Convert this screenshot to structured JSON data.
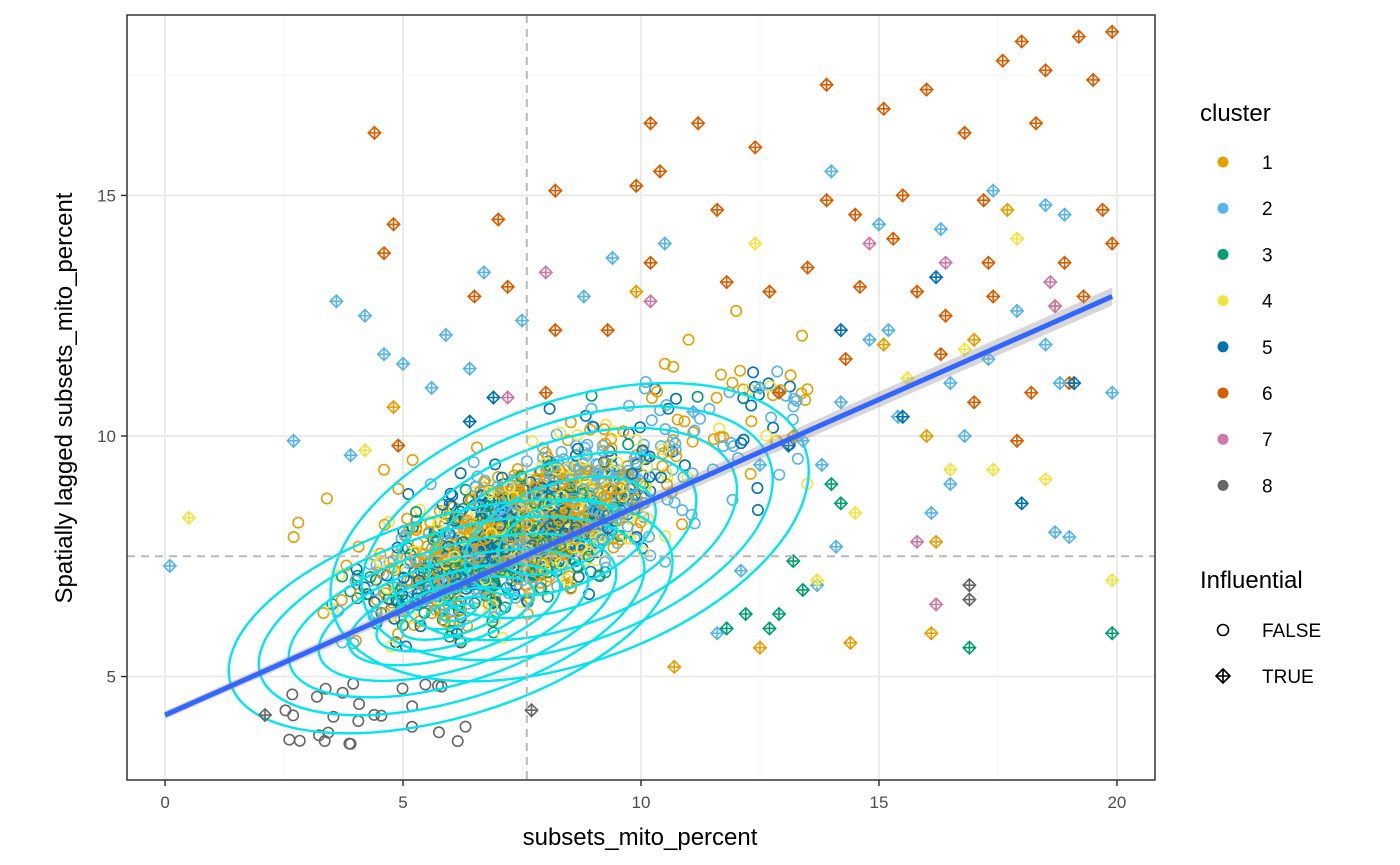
{
  "chart_data": {
    "type": "scatter",
    "xlabel": "subsets_mito_percent",
    "ylabel": "Spatially lagged subsets_mito_percent",
    "xlim": [
      -0.8,
      20.8
    ],
    "ylim": [
      2.85,
      18.75
    ],
    "x_ticks": [
      0,
      5,
      10,
      15,
      20
    ],
    "y_ticks": [
      5,
      10,
      15
    ],
    "grid": true,
    "reference_lines": {
      "x": 7.6,
      "y": 7.5
    },
    "regression_line": {
      "x": [
        0,
        19.9
      ],
      "y": [
        4.2,
        12.9
      ],
      "color": "#3366ff"
    },
    "legend_position": "right",
    "cluster_legend": {
      "title": "cluster",
      "items": [
        {
          "label": "1",
          "color": "#e69f00"
        },
        {
          "label": "2",
          "color": "#56b4e9"
        },
        {
          "label": "3",
          "color": "#009e73"
        },
        {
          "label": "4",
          "color": "#f0e442"
        },
        {
          "label": "5",
          "color": "#0072b2"
        },
        {
          "label": "6",
          "color": "#d55e00"
        },
        {
          "label": "7",
          "color": "#cc79a7"
        },
        {
          "label": "8",
          "color": "#666666"
        }
      ]
    },
    "influential_legend": {
      "title": "Influential",
      "items": [
        {
          "label": "FALSE",
          "shape": "circle"
        },
        {
          "label": "TRUE",
          "shape": "diamond-plus"
        }
      ]
    },
    "density_contour_color": "#00e5ee",
    "influential_points": [
      {
        "x": 4.4,
        "y": 16.3,
        "c": 6
      },
      {
        "x": 4.8,
        "y": 14.4,
        "c": 6
      },
      {
        "x": 4.6,
        "y": 13.8,
        "c": 6
      },
      {
        "x": 7.0,
        "y": 14.5,
        "c": 6
      },
      {
        "x": 10.2,
        "y": 16.5,
        "c": 6
      },
      {
        "x": 11.2,
        "y": 16.5,
        "c": 6
      },
      {
        "x": 8.2,
        "y": 15.1,
        "c": 6
      },
      {
        "x": 9.9,
        "y": 15.2,
        "c": 6
      },
      {
        "x": 10.4,
        "y": 15.5,
        "c": 6
      },
      {
        "x": 11.6,
        "y": 14.7,
        "c": 6
      },
      {
        "x": 12.4,
        "y": 16.0,
        "c": 6
      },
      {
        "x": 13.9,
        "y": 17.3,
        "c": 6
      },
      {
        "x": 13.9,
        "y": 14.9,
        "c": 6
      },
      {
        "x": 14.5,
        "y": 14.6,
        "c": 6
      },
      {
        "x": 15.1,
        "y": 16.8,
        "c": 6
      },
      {
        "x": 15.5,
        "y": 15.0,
        "c": 6
      },
      {
        "x": 16.0,
        "y": 17.2,
        "c": 6
      },
      {
        "x": 16.8,
        "y": 16.3,
        "c": 6
      },
      {
        "x": 17.2,
        "y": 14.9,
        "c": 6
      },
      {
        "x": 17.6,
        "y": 17.8,
        "c": 6
      },
      {
        "x": 18.0,
        "y": 18.2,
        "c": 6
      },
      {
        "x": 18.5,
        "y": 17.6,
        "c": 6
      },
      {
        "x": 19.2,
        "y": 18.3,
        "c": 6
      },
      {
        "x": 19.9,
        "y": 18.4,
        "c": 6
      },
      {
        "x": 19.5,
        "y": 17.4,
        "c": 6
      },
      {
        "x": 18.3,
        "y": 16.5,
        "c": 6
      },
      {
        "x": 19.7,
        "y": 14.7,
        "c": 6
      },
      {
        "x": 19.9,
        "y": 14.0,
        "c": 6
      },
      {
        "x": 18.9,
        "y": 13.6,
        "c": 6
      },
      {
        "x": 17.4,
        "y": 12.9,
        "c": 6
      },
      {
        "x": 16.4,
        "y": 12.5,
        "c": 6
      },
      {
        "x": 15.3,
        "y": 14.1,
        "c": 6
      },
      {
        "x": 14.6,
        "y": 13.1,
        "c": 6
      },
      {
        "x": 13.5,
        "y": 13.5,
        "c": 6
      },
      {
        "x": 12.7,
        "y": 13.0,
        "c": 6
      },
      {
        "x": 11.8,
        "y": 13.2,
        "c": 6
      },
      {
        "x": 10.2,
        "y": 13.6,
        "c": 6
      },
      {
        "x": 9.3,
        "y": 12.2,
        "c": 6
      },
      {
        "x": 8.2,
        "y": 12.2,
        "c": 6
      },
      {
        "x": 7.2,
        "y": 13.1,
        "c": 6
      },
      {
        "x": 6.5,
        "y": 12.9,
        "c": 6
      },
      {
        "x": 4.9,
        "y": 9.8,
        "c": 6
      },
      {
        "x": 8.0,
        "y": 10.9,
        "c": 6
      },
      {
        "x": 12.9,
        "y": 10.9,
        "c": 6
      },
      {
        "x": 14.3,
        "y": 11.6,
        "c": 6
      },
      {
        "x": 16.3,
        "y": 11.7,
        "c": 6
      },
      {
        "x": 17.0,
        "y": 10.7,
        "c": 6
      },
      {
        "x": 18.2,
        "y": 10.9,
        "c": 6
      },
      {
        "x": 17.9,
        "y": 9.9,
        "c": 6
      },
      {
        "x": 19.0,
        "y": 11.1,
        "c": 6
      },
      {
        "x": 18.7,
        "y": 12.7,
        "c": 6
      },
      {
        "x": 17.3,
        "y": 13.6,
        "c": 6
      },
      {
        "x": 19.3,
        "y": 12.9,
        "c": 6
      },
      {
        "x": 15.8,
        "y": 13.0,
        "c": 6
      },
      {
        "x": 14.0,
        "y": 15.5,
        "c": 2
      },
      {
        "x": 17.4,
        "y": 15.1,
        "c": 2
      },
      {
        "x": 18.5,
        "y": 14.8,
        "c": 2
      },
      {
        "x": 18.9,
        "y": 14.6,
        "c": 2
      },
      {
        "x": 15.0,
        "y": 14.4,
        "c": 2
      },
      {
        "x": 16.3,
        "y": 14.3,
        "c": 2
      },
      {
        "x": 3.6,
        "y": 12.8,
        "c": 2
      },
      {
        "x": 4.2,
        "y": 12.5,
        "c": 2
      },
      {
        "x": 6.7,
        "y": 13.4,
        "c": 2
      },
      {
        "x": 5.9,
        "y": 12.1,
        "c": 2
      },
      {
        "x": 6.4,
        "y": 11.4,
        "c": 2
      },
      {
        "x": 4.6,
        "y": 11.7,
        "c": 2
      },
      {
        "x": 5.0,
        "y": 11.5,
        "c": 2
      },
      {
        "x": 5.6,
        "y": 11.0,
        "c": 2
      },
      {
        "x": 7.5,
        "y": 12.4,
        "c": 2
      },
      {
        "x": 8.8,
        "y": 12.9,
        "c": 2
      },
      {
        "x": 9.4,
        "y": 13.7,
        "c": 2
      },
      {
        "x": 10.5,
        "y": 14.0,
        "c": 2
      },
      {
        "x": 2.7,
        "y": 9.9,
        "c": 2
      },
      {
        "x": 0.1,
        "y": 7.3,
        "c": 2
      },
      {
        "x": 3.9,
        "y": 9.6,
        "c": 2
      },
      {
        "x": 14.8,
        "y": 12.0,
        "c": 2
      },
      {
        "x": 15.2,
        "y": 12.2,
        "c": 2
      },
      {
        "x": 16.5,
        "y": 11.1,
        "c": 2
      },
      {
        "x": 17.3,
        "y": 11.6,
        "c": 2
      },
      {
        "x": 17.9,
        "y": 12.6,
        "c": 2
      },
      {
        "x": 18.5,
        "y": 11.9,
        "c": 2
      },
      {
        "x": 18.8,
        "y": 11.1,
        "c": 2
      },
      {
        "x": 19.9,
        "y": 10.9,
        "c": 2
      },
      {
        "x": 16.8,
        "y": 10.0,
        "c": 2
      },
      {
        "x": 15.4,
        "y": 10.4,
        "c": 2
      },
      {
        "x": 14.2,
        "y": 10.7,
        "c": 2
      },
      {
        "x": 13.4,
        "y": 9.9,
        "c": 2
      },
      {
        "x": 13.8,
        "y": 9.4,
        "c": 2
      },
      {
        "x": 12.5,
        "y": 9.4,
        "c": 2
      },
      {
        "x": 16.5,
        "y": 9.0,
        "c": 2
      },
      {
        "x": 16.1,
        "y": 8.4,
        "c": 2
      },
      {
        "x": 14.1,
        "y": 7.7,
        "c": 2
      },
      {
        "x": 18.7,
        "y": 8.0,
        "c": 2
      },
      {
        "x": 19.0,
        "y": 7.9,
        "c": 2
      },
      {
        "x": 12.1,
        "y": 7.2,
        "c": 2
      },
      {
        "x": 11.6,
        "y": 5.9,
        "c": 2
      },
      {
        "x": 13.7,
        "y": 6.9,
        "c": 2
      },
      {
        "x": 11.1,
        "y": 10.5,
        "c": 2
      },
      {
        "x": 12.5,
        "y": 11.0,
        "c": 2
      },
      {
        "x": 6.4,
        "y": 10.3,
        "c": 5
      },
      {
        "x": 6.9,
        "y": 10.8,
        "c": 5
      },
      {
        "x": 16.2,
        "y": 13.3,
        "c": 5
      },
      {
        "x": 19.1,
        "y": 11.1,
        "c": 5
      },
      {
        "x": 15.5,
        "y": 10.4,
        "c": 5
      },
      {
        "x": 14.2,
        "y": 12.2,
        "c": 5
      },
      {
        "x": 13.1,
        "y": 9.8,
        "c": 5
      },
      {
        "x": 18.0,
        "y": 8.6,
        "c": 5
      },
      {
        "x": 13.4,
        "y": 6.8,
        "c": 3
      },
      {
        "x": 12.9,
        "y": 6.3,
        "c": 3
      },
      {
        "x": 12.7,
        "y": 6.0,
        "c": 3
      },
      {
        "x": 12.2,
        "y": 6.3,
        "c": 3
      },
      {
        "x": 11.8,
        "y": 6.0,
        "c": 3
      },
      {
        "x": 13.2,
        "y": 7.4,
        "c": 3
      },
      {
        "x": 14.2,
        "y": 8.6,
        "c": 3
      },
      {
        "x": 14.0,
        "y": 9.0,
        "c": 3
      },
      {
        "x": 16.9,
        "y": 5.6,
        "c": 3
      },
      {
        "x": 19.9,
        "y": 5.9,
        "c": 3
      },
      {
        "x": 0.5,
        "y": 8.3,
        "c": 4
      },
      {
        "x": 4.2,
        "y": 9.7,
        "c": 4
      },
      {
        "x": 14.5,
        "y": 8.4,
        "c": 4
      },
      {
        "x": 16.5,
        "y": 9.3,
        "c": 4
      },
      {
        "x": 17.4,
        "y": 9.3,
        "c": 4
      },
      {
        "x": 18.5,
        "y": 9.1,
        "c": 4
      },
      {
        "x": 19.9,
        "y": 7.0,
        "c": 4
      },
      {
        "x": 13.7,
        "y": 7.0,
        "c": 4
      },
      {
        "x": 15.6,
        "y": 11.2,
        "c": 4
      },
      {
        "x": 17.9,
        "y": 14.1,
        "c": 4
      },
      {
        "x": 12.4,
        "y": 14.0,
        "c": 4
      },
      {
        "x": 16.8,
        "y": 11.8,
        "c": 4
      },
      {
        "x": 4.8,
        "y": 10.6,
        "c": 1
      },
      {
        "x": 9.9,
        "y": 13.0,
        "c": 1
      },
      {
        "x": 14.4,
        "y": 5.7,
        "c": 1
      },
      {
        "x": 16.1,
        "y": 5.9,
        "c": 1
      },
      {
        "x": 12.5,
        "y": 5.6,
        "c": 1
      },
      {
        "x": 10.7,
        "y": 5.2,
        "c": 1
      },
      {
        "x": 16.2,
        "y": 7.8,
        "c": 1
      },
      {
        "x": 17.0,
        "y": 12.0,
        "c": 1
      },
      {
        "x": 17.7,
        "y": 14.7,
        "c": 1
      },
      {
        "x": 15.1,
        "y": 11.9,
        "c": 1
      },
      {
        "x": 13.2,
        "y": 10.0,
        "c": 1
      },
      {
        "x": 16.0,
        "y": 10.0,
        "c": 1
      },
      {
        "x": 8.0,
        "y": 13.4,
        "c": 7
      },
      {
        "x": 7.2,
        "y": 10.8,
        "c": 7
      },
      {
        "x": 15.8,
        "y": 7.8,
        "c": 7
      },
      {
        "x": 16.2,
        "y": 6.5,
        "c": 7
      },
      {
        "x": 16.4,
        "y": 13.6,
        "c": 7
      },
      {
        "x": 18.6,
        "y": 13.2,
        "c": 7
      },
      {
        "x": 18.7,
        "y": 12.7,
        "c": 7
      },
      {
        "x": 14.8,
        "y": 14.0,
        "c": 7
      },
      {
        "x": 10.2,
        "y": 12.8,
        "c": 7
      },
      {
        "x": 2.1,
        "y": 4.2,
        "c": 8
      },
      {
        "x": 7.7,
        "y": 4.3,
        "c": 8
      },
      {
        "x": 16.9,
        "y": 6.9,
        "c": 8
      },
      {
        "x": 16.9,
        "y": 6.6,
        "c": 8
      }
    ]
  }
}
